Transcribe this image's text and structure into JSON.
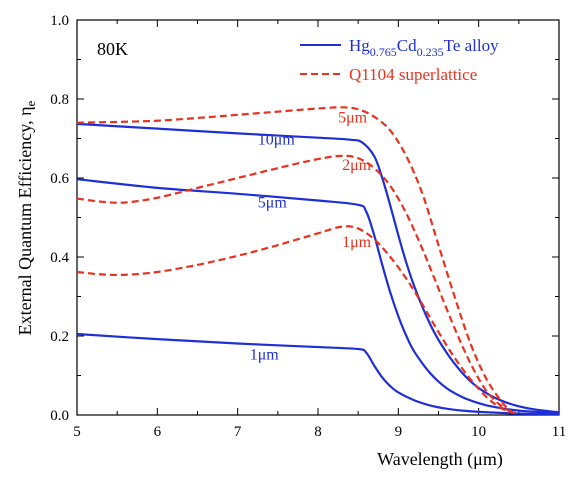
{
  "chart_data": {
    "type": "line",
    "annotation": "80K",
    "xlabel": "Wavelength (μm)",
    "ylabel_main": "External Quantum Efficiency, η",
    "ylabel_sub": "e",
    "xlim": [
      5,
      11
    ],
    "ylim": [
      0,
      1.0
    ],
    "xticks": [
      "5",
      "6",
      "7",
      "8",
      "9",
      "10",
      "11"
    ],
    "yticks": [
      "0.0",
      "0.2",
      "0.4",
      "0.6",
      "0.8",
      "1.0"
    ],
    "xtick_values": [
      5,
      6,
      7,
      8,
      9,
      10,
      11
    ],
    "ytick_values": [
      0,
      0.2,
      0.4,
      0.6,
      0.8,
      1.0
    ],
    "legend": {
      "position": "top-right",
      "entries": [
        {
          "base": "Hg",
          "sub1": "0.765",
          "mid": "Cd",
          "sub2": "0.235",
          "tail": "Te alloy",
          "color": "#1f2fd6",
          "style": "solid"
        },
        {
          "text": "Q1104 superlattice",
          "color": "#e8321e",
          "style": "dashed"
        }
      ]
    },
    "series": [
      {
        "group": "alloy",
        "label": "10μm",
        "color": "#1f2fd6",
        "style": "solid",
        "label_x": 7.25,
        "label_y": 0.685,
        "x": [
          5,
          6,
          7,
          8,
          8.4,
          8.55,
          8.7,
          8.8,
          8.9,
          9.0,
          9.1,
          9.2,
          9.35,
          9.5,
          9.7,
          9.9,
          10.1,
          10.3,
          10.5,
          10.7,
          10.9,
          11
        ],
        "y": [
          0.737,
          0.725,
          0.713,
          0.702,
          0.697,
          0.69,
          0.655,
          0.6,
          0.53,
          0.455,
          0.385,
          0.325,
          0.25,
          0.19,
          0.13,
          0.085,
          0.055,
          0.035,
          0.022,
          0.014,
          0.009,
          0.007
        ]
      },
      {
        "group": "alloy",
        "label": "5μm",
        "color": "#1f2fd6",
        "style": "solid",
        "label_x": 7.25,
        "label_y": 0.525,
        "x": [
          5,
          6,
          7,
          8,
          8.5,
          8.6,
          8.7,
          8.8,
          8.9,
          9.0,
          9.1,
          9.2,
          9.4,
          9.6,
          9.8,
          10.0,
          10.2,
          10.5,
          10.8,
          11
        ],
        "y": [
          0.597,
          0.575,
          0.56,
          0.543,
          0.532,
          0.515,
          0.455,
          0.38,
          0.31,
          0.25,
          0.2,
          0.16,
          0.105,
          0.068,
          0.045,
          0.03,
          0.02,
          0.011,
          0.007,
          0.005
        ]
      },
      {
        "group": "alloy",
        "label": "1μm",
        "color": "#1f2fd6",
        "style": "solid",
        "label_x": 7.15,
        "label_y": 0.14,
        "x": [
          5,
          6,
          7,
          8,
          8.5,
          8.6,
          8.7,
          8.8,
          8.9,
          9.0,
          9.2,
          9.4,
          9.6,
          9.8,
          10.0,
          10.3,
          10.6,
          11
        ],
        "y": [
          0.205,
          0.192,
          0.181,
          0.172,
          0.167,
          0.158,
          0.125,
          0.095,
          0.073,
          0.057,
          0.037,
          0.024,
          0.016,
          0.011,
          0.008,
          0.005,
          0.003,
          0.002
        ]
      },
      {
        "group": "superlattice",
        "label": "5μm",
        "color": "#e8321e",
        "style": "dashed",
        "label_x": 8.25,
        "label_y": 0.74,
        "x": [
          5,
          5.5,
          6,
          6.5,
          7,
          7.5,
          8,
          8.3,
          8.5,
          8.7,
          8.9,
          9.1,
          9.3,
          9.5,
          9.7,
          9.9,
          10.1,
          10.3,
          10.4
        ],
        "y": [
          0.74,
          0.742,
          0.745,
          0.752,
          0.76,
          0.768,
          0.776,
          0.779,
          0.774,
          0.755,
          0.72,
          0.655,
          0.56,
          0.43,
          0.3,
          0.18,
          0.09,
          0.03,
          0.01
        ]
      },
      {
        "group": "superlattice",
        "label": "2μm",
        "color": "#e8321e",
        "style": "dashed",
        "label_x": 8.3,
        "label_y": 0.62,
        "x": [
          5,
          5.3,
          5.6,
          6,
          6.5,
          7,
          7.5,
          8,
          8.3,
          8.5,
          8.7,
          8.9,
          9.1,
          9.3,
          9.5,
          9.7,
          9.9,
          10.1,
          10.3,
          10.45
        ],
        "y": [
          0.548,
          0.54,
          0.538,
          0.55,
          0.575,
          0.6,
          0.625,
          0.648,
          0.656,
          0.65,
          0.625,
          0.58,
          0.51,
          0.42,
          0.32,
          0.22,
          0.13,
          0.06,
          0.02,
          0.005
        ]
      },
      {
        "group": "superlattice",
        "label": "1μm",
        "color": "#e8321e",
        "style": "dashed",
        "label_x": 8.3,
        "label_y": 0.425,
        "x": [
          5,
          5.3,
          5.6,
          6,
          6.5,
          7,
          7.5,
          8,
          8.3,
          8.5,
          8.7,
          8.9,
          9.1,
          9.3,
          9.5,
          9.7,
          9.9,
          10.1,
          10.3,
          10.5
        ],
        "y": [
          0.362,
          0.356,
          0.355,
          0.362,
          0.38,
          0.403,
          0.43,
          0.46,
          0.477,
          0.472,
          0.445,
          0.4,
          0.345,
          0.28,
          0.21,
          0.145,
          0.09,
          0.045,
          0.015,
          0.003
        ]
      }
    ]
  }
}
